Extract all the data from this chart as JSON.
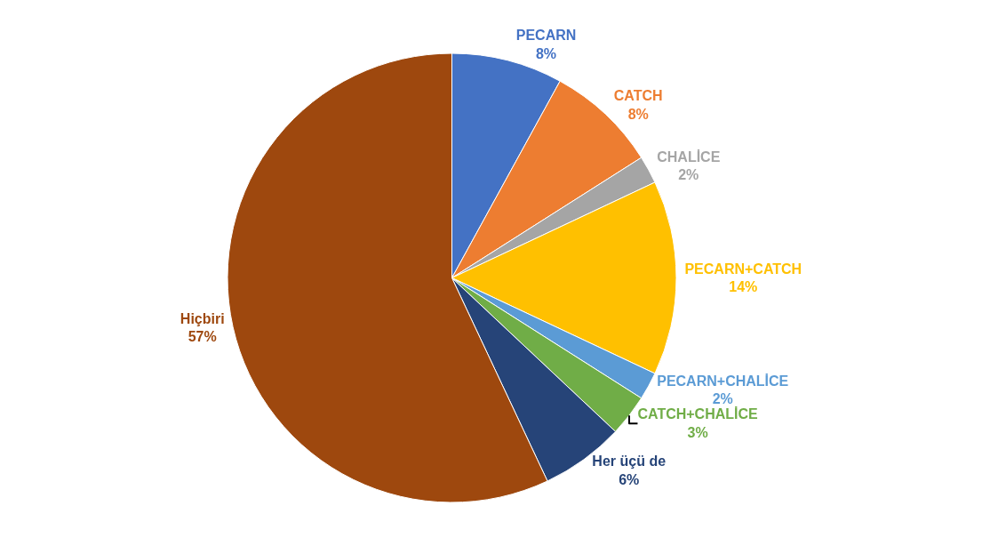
{
  "chart_data": {
    "type": "pie",
    "categories": [
      "PECARN",
      "CATCH",
      "CHALİCE",
      "PECARN+CATCH",
      "PECARN+CHALİCE",
      "CATCH+CHALİCE",
      "Her üçü de",
      "Hiçbiri"
    ],
    "values": [
      8,
      8,
      2,
      14,
      2,
      3,
      6,
      57
    ],
    "value_labels": [
      "8%",
      "8%",
      "2%",
      "14%",
      "2%",
      "3%",
      "6%",
      "57%"
    ],
    "colors": [
      "#4472c4",
      "#ed7d31",
      "#a5a5a5",
      "#ffc000",
      "#5b9bd5",
      "#70ad47",
      "#264478",
      "#9e480e"
    ],
    "legend": false
  }
}
